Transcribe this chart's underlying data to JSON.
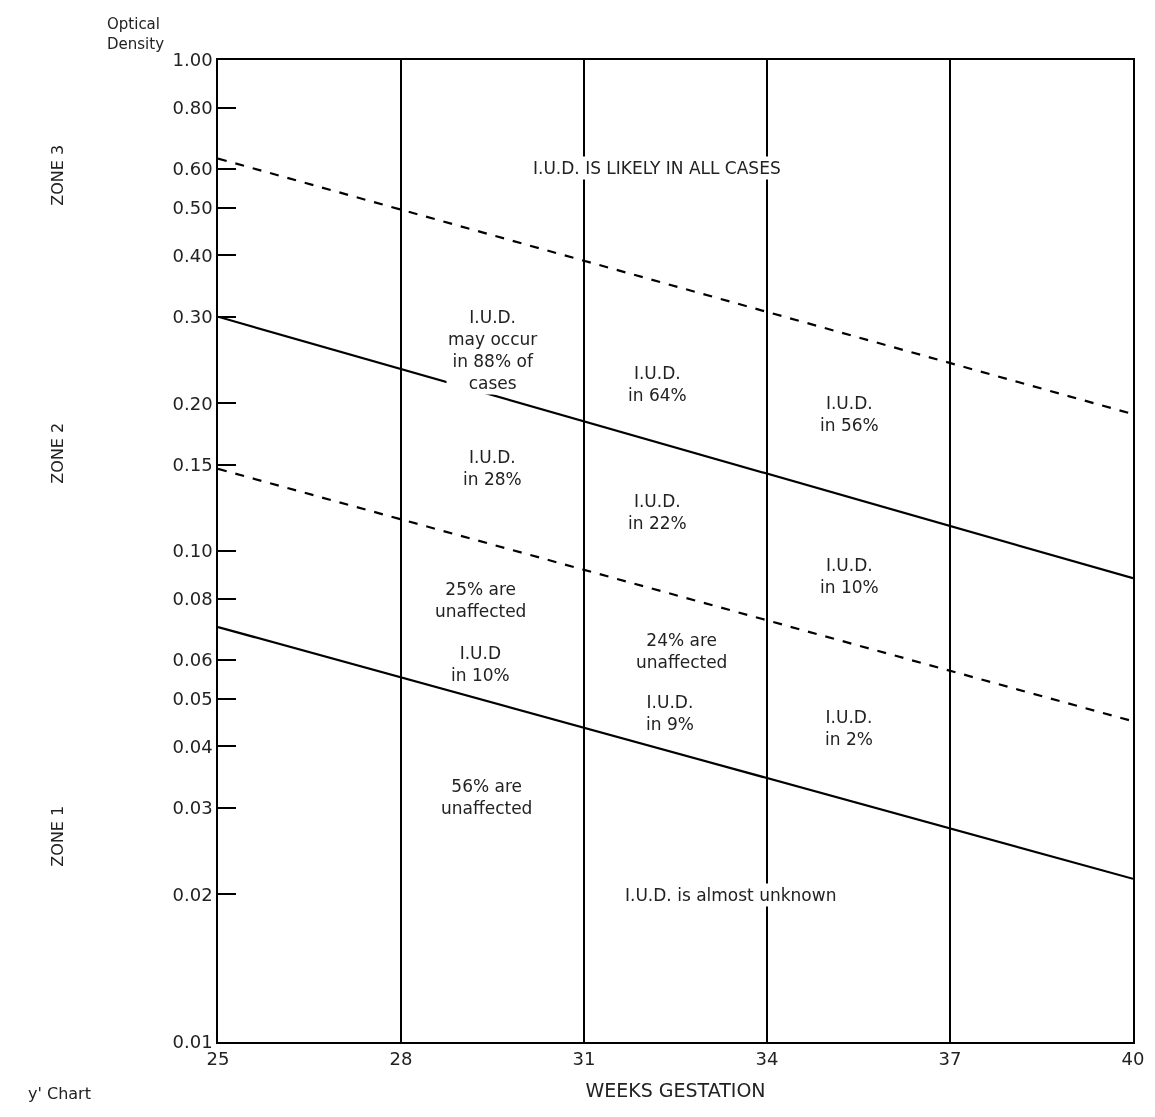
{
  "chart_data": {
    "type": "line",
    "ylabel": "Optical\nDensity",
    "xlabel": "WEEKS GESTATION",
    "x": [
      25,
      40
    ],
    "log": "y",
    "grid": "x",
    "marker": "none",
    "xlim": [
      25,
      40
    ],
    "xticks": [
      25,
      28,
      31,
      34,
      37,
      40
    ],
    "ylim": [
      0.01,
      1.0
    ],
    "yticks": [
      {
        "value": 0.01,
        "label": "0.01"
      },
      {
        "value": 0.02,
        "label": "0.02"
      },
      {
        "value": 0.03,
        "label": "0.03"
      },
      {
        "value": 0.04,
        "label": "0.04"
      },
      {
        "value": 0.05,
        "label": "0.05"
      },
      {
        "value": 0.06,
        "label": "0.06"
      },
      {
        "value": 0.08,
        "label": "0.08"
      },
      {
        "value": 0.1,
        "label": "0.10"
      },
      {
        "value": 0.15,
        "label": "0.15"
      },
      {
        "value": 0.2,
        "label": "0.20"
      },
      {
        "value": 0.3,
        "label": "0.30"
      },
      {
        "value": 0.4,
        "label": "0.40"
      },
      {
        "value": 0.5,
        "label": "0.50"
      },
      {
        "value": 0.6,
        "label": "0.60"
      },
      {
        "value": 0.8,
        "label": "0.80"
      },
      {
        "value": 1.0,
        "label": "1.00"
      }
    ],
    "series": [
      {
        "color": "#000000",
        "line_style": "dashed",
        "values": [
          0.63,
          0.19
        ]
      },
      {
        "color": "#000000",
        "line_style": "solid",
        "values": [
          0.3,
          0.088
        ]
      },
      {
        "color": "#000000",
        "line_style": "dashed",
        "values": [
          0.147,
          0.045
        ]
      },
      {
        "color": "#000000",
        "line_style": "solid",
        "values": [
          0.07,
          0.0215
        ]
      }
    ],
    "annotations": [
      "I.U.D. IS LIKELY IN ALL CASES",
      "I.U.D.\nmay occur\nin 88% of\ncases",
      "I.U.D.\nin 64%",
      "I.U.D.\nin 56%",
      "I.U.D.\nin 28%",
      "I.U.D.\nin 22%",
      "I.U.D.\nin 10%",
      "25% are\nunaffected",
      "I.U.D\nin 10%",
      "24% are\nunaffected",
      "I.U.D.\nin 9%",
      "I.U.D.\nin 2%",
      "56% are\nunaffected",
      "I.U.D. is almost unknown",
      "ZONE 3",
      "ZONE 2",
      "ZONE 1",
      "y' Chart"
    ]
  }
}
